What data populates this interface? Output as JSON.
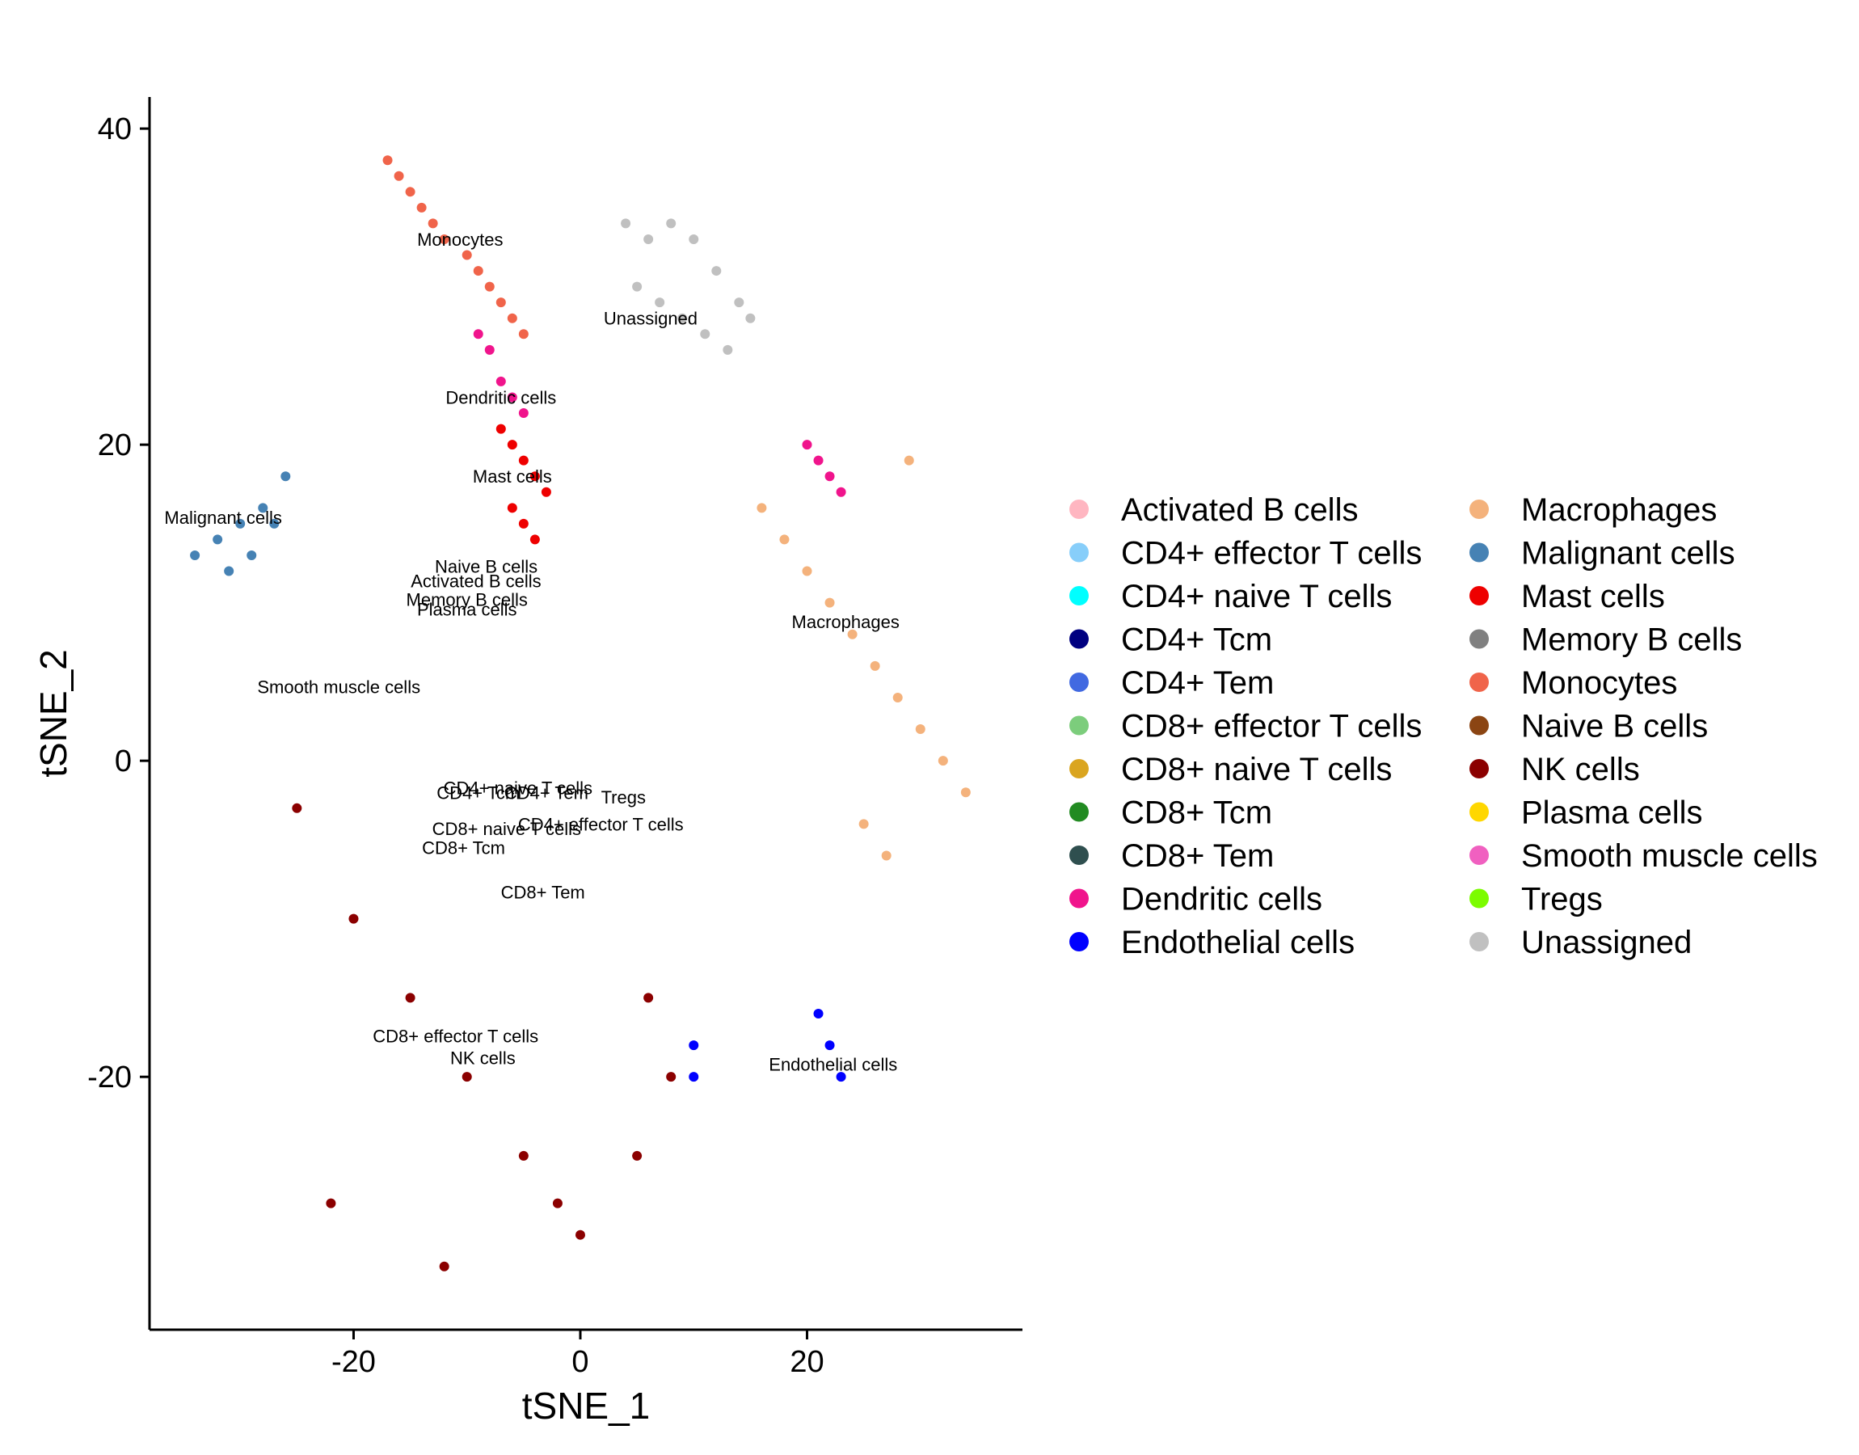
{
  "chart_data": {
    "type": "scatter",
    "xlabel": "tSNE_1",
    "ylabel": "tSNE_2",
    "xlim": [
      -38,
      39
    ],
    "ylim": [
      -36,
      42
    ],
    "xticks": [
      -20,
      0,
      20
    ],
    "yticks": [
      40,
      20,
      0,
      -20
    ],
    "x_tick_labels": [
      "-20",
      "0",
      "20"
    ],
    "y_tick_labels": [
      "40",
      "20",
      "0",
      "-20"
    ],
    "grid": false,
    "legend_placement": "right",
    "legend": [
      {
        "name": "Activated B cells",
        "color": "#FFB6C1"
      },
      {
        "name": "CD4+ effector T cells",
        "color": "#87CEFA"
      },
      {
        "name": "CD4+ naive T cells",
        "color": "#00FFFF"
      },
      {
        "name": "CD4+ Tcm",
        "color": "#000080"
      },
      {
        "name": "CD4+ Tem",
        "color": "#4169E1"
      },
      {
        "name": "CD8+ effector T cells",
        "color": "#7CCD7C"
      },
      {
        "name": "CD8+ naive T cells",
        "color": "#DAA520"
      },
      {
        "name": "CD8+ Tcm",
        "color": "#228B22"
      },
      {
        "name": "CD8+ Tem",
        "color": "#2F4F4F"
      },
      {
        "name": "Dendritic cells",
        "color": "#F0148C"
      },
      {
        "name": "Endothelial cells",
        "color": "#0000FF"
      },
      {
        "name": "Macrophages",
        "color": "#F4B27C"
      },
      {
        "name": "Malignant cells",
        "color": "#4682B4"
      },
      {
        "name": "Mast cells",
        "color": "#EE0000"
      },
      {
        "name": "Memory B cells",
        "color": "#808080"
      },
      {
        "name": "Monocytes",
        "color": "#F0644A"
      },
      {
        "name": "Naive B cells",
        "color": "#8B4513"
      },
      {
        "name": "NK cells",
        "color": "#8B0000"
      },
      {
        "name": "Plasma cells",
        "color": "#FFD700"
      },
      {
        "name": "Smooth muscle cells",
        "color": "#F060C0"
      },
      {
        "name": "Tregs",
        "color": "#7CFC00"
      },
      {
        "name": "Unassigned",
        "color": "#C0C0C0"
      }
    ],
    "cluster_labels": [
      {
        "text": "Monocytes",
        "x": -10.6,
        "y": 33.0
      },
      {
        "text": "Unassigned",
        "x": 6.2,
        "y": 28.0
      },
      {
        "text": "Dendritic cells",
        "x": -7.0,
        "y": 23.0
      },
      {
        "text": "Mast cells",
        "x": -6.0,
        "y": 18.0
      },
      {
        "text": "Malignant cells",
        "x": -31.5,
        "y": 15.4
      },
      {
        "text": "Naive B cells",
        "x": -8.3,
        "y": 12.3
      },
      {
        "text": "Activated B cells",
        "x": -9.2,
        "y": 11.4
      },
      {
        "text": "Memory B cells",
        "x": -10.0,
        "y": 10.2
      },
      {
        "text": "Plasma cells",
        "x": -10.0,
        "y": 9.6
      },
      {
        "text": "Macrophages",
        "x": 23.4,
        "y": 8.8
      },
      {
        "text": "Smooth muscle cells",
        "x": -21.3,
        "y": 4.7
      },
      {
        "text": "CD4+ naive T cells",
        "x": -5.5,
        "y": -1.7
      },
      {
        "text": "CD4+ Tcm",
        "x": -9.0,
        "y": -2.0
      },
      {
        "text": "CD4+ Tem",
        "x": -3.0,
        "y": -2.0
      },
      {
        "text": "Tregs",
        "x": 3.8,
        "y": -2.3
      },
      {
        "text": "CD4+ effector T cells",
        "x": 1.8,
        "y": -4.0
      },
      {
        "text": "CD8+ naive T cells",
        "x": -6.5,
        "y": -4.3
      },
      {
        "text": "CD8+ Tcm",
        "x": -10.3,
        "y": -5.5
      },
      {
        "text": "CD8+ Tem",
        "x": -3.3,
        "y": -8.3
      },
      {
        "text": "CD8+ effector T cells",
        "x": -11.0,
        "y": -17.4
      },
      {
        "text": "NK cells",
        "x": -8.6,
        "y": -18.8
      },
      {
        "text": "Endothelial cells",
        "x": 22.3,
        "y": -19.2
      }
    ],
    "clusters": [
      {
        "label": "Monocytes",
        "x": [
          -17,
          -16,
          -15,
          -14,
          -13,
          -12,
          -10,
          -9,
          -8,
          -7,
          -6,
          -5
        ],
        "y": [
          38,
          37,
          36,
          35,
          34,
          33,
          32,
          31,
          30,
          29,
          28,
          27
        ]
      },
      {
        "label": "Unassigned",
        "x": [
          4,
          6,
          8,
          10,
          12,
          14,
          15,
          13,
          11,
          9,
          7,
          5
        ],
        "y": [
          34,
          33,
          34,
          33,
          31,
          29,
          28,
          26,
          27,
          28,
          29,
          30
        ]
      },
      {
        "label": "Dendritic cells",
        "x": [
          -9,
          -8,
          -7,
          -6,
          -5,
          20,
          21,
          22,
          23
        ],
        "y": [
          27,
          26,
          24,
          23,
          22,
          20,
          19,
          18,
          17
        ]
      },
      {
        "label": "Mast cells",
        "x": [
          -7,
          -6,
          -5,
          -4,
          -3,
          -6,
          -5,
          -4
        ],
        "y": [
          21,
          20,
          19,
          18,
          17,
          16,
          15,
          14
        ]
      },
      {
        "label": "Malignant cells",
        "x": [
          -34,
          -32,
          -30,
          -28,
          -26,
          -31,
          -29,
          -27
        ],
        "y": [
          13,
          14,
          15,
          16,
          18,
          12,
          13,
          15
        ]
      },
      {
        "label": "Macrophages",
        "x": [
          16,
          18,
          20,
          22,
          24,
          26,
          28,
          30,
          32,
          34,
          25,
          27,
          29
        ],
        "y": [
          16,
          14,
          12,
          10,
          8,
          6,
          4,
          2,
          0,
          -2,
          -4,
          -6,
          19
        ]
      },
      {
        "label": "NK cells",
        "x": [
          -25,
          -20,
          -15,
          -10,
          -5,
          0,
          5,
          8,
          -22,
          -12,
          -2,
          6
        ],
        "y": [
          -3,
          -10,
          -15,
          -20,
          -25,
          -30,
          -25,
          -20,
          -28,
          -32,
          -28,
          -15
        ]
      },
      {
        "label": "Endothelial cells",
        "x": [
          21,
          22,
          23,
          10,
          10
        ],
        "y": [
          -16,
          -18,
          -20,
          -18,
          -20
        ]
      }
    ]
  }
}
